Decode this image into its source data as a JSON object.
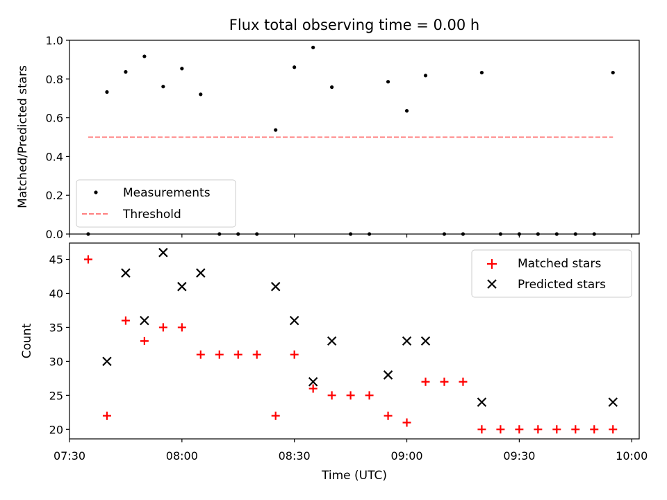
{
  "chart_data": {
    "title": "Flux total observing time = 0.00 h",
    "xlabel": "Time (UTC)",
    "x_ticks": [
      "07:30",
      "08:00",
      "08:30",
      "09:00",
      "09:30",
      "10:00"
    ],
    "x_range_minutes": [
      450,
      602
    ],
    "times": [
      "07:35",
      "07:40",
      "07:45",
      "07:50",
      "07:55",
      "08:00",
      "08:05",
      "08:10",
      "08:15",
      "08:20",
      "08:25",
      "08:30",
      "08:35",
      "08:40",
      "08:45",
      "08:50",
      "08:55",
      "09:00",
      "09:05",
      "09:10",
      "09:15",
      "09:20",
      "09:25",
      "09:30",
      "09:35",
      "09:40",
      "09:45",
      "09:50",
      "09:55"
    ],
    "top": {
      "type": "scatter",
      "ylabel": "Matched/Predicted stars",
      "ylim": [
        0,
        1.0
      ],
      "y_ticks": [
        "0.0",
        "0.2",
        "0.4",
        "0.6",
        "0.8",
        "1.0"
      ],
      "measurements": [
        0,
        0.733,
        0.837,
        0.917,
        0.761,
        0.854,
        0.721,
        0,
        0,
        0,
        0.537,
        0.861,
        0.963,
        0.758,
        0,
        0,
        0.786,
        0.636,
        0.818,
        0,
        0,
        0.833,
        0,
        0,
        0,
        0,
        0,
        0,
        0.833
      ],
      "threshold": 0.5,
      "threshold_color": "#ff7f7f",
      "legend": [
        "Measurements",
        "Threshold"
      ],
      "legend_position": "lower-left"
    },
    "bottom": {
      "type": "scatter",
      "ylabel": "Count",
      "ylim": [
        18.6,
        47.4
      ],
      "y_ticks": [
        "20",
        "25",
        "30",
        "35",
        "40",
        "45"
      ],
      "matched": [
        45,
        22,
        36,
        33,
        35,
        35,
        31,
        31,
        31,
        31,
        22,
        31,
        26,
        25,
        25,
        25,
        22,
        21,
        27,
        27,
        27,
        20,
        20,
        20,
        20,
        20,
        20,
        20,
        20
      ],
      "predicted": [
        null,
        30,
        43,
        36,
        46,
        41,
        43,
        null,
        null,
        null,
        41,
        36,
        27,
        33,
        null,
        null,
        28,
        33,
        33,
        null,
        null,
        24,
        null,
        null,
        null,
        null,
        null,
        null,
        24
      ],
      "matched_color": "#ff0000",
      "predicted_color": "#000000",
      "legend": [
        "Matched stars",
        "Predicted stars"
      ],
      "legend_position": "upper-right"
    }
  }
}
